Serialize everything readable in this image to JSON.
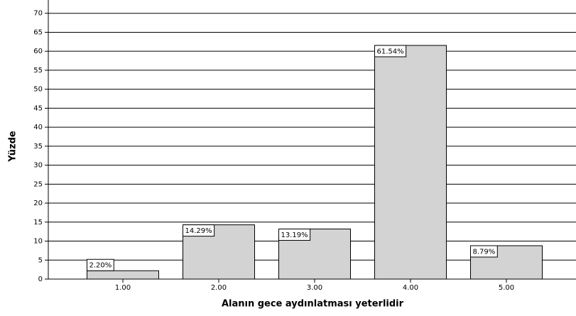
{
  "chart_data": {
    "type": "bar",
    "x_label": "Alanın gece aydınlatması yeterlidir",
    "y_label": "Yüzde",
    "categories": [
      "1.00",
      "2.00",
      "3.00",
      "4.00",
      "5.00"
    ],
    "values": [
      2.2,
      14.29,
      13.19,
      61.54,
      8.79
    ],
    "value_labels": [
      "2.20%",
      "14.29%",
      "13.19%",
      "61.54%",
      "8.79%"
    ],
    "color": "#d3d3d3",
    "ylim": [
      0,
      73.5
    ],
    "yticks": [
      0,
      5,
      10,
      15,
      20,
      25,
      30,
      35,
      40,
      45,
      50,
      55,
      60,
      65,
      70
    ],
    "grid": true
  }
}
